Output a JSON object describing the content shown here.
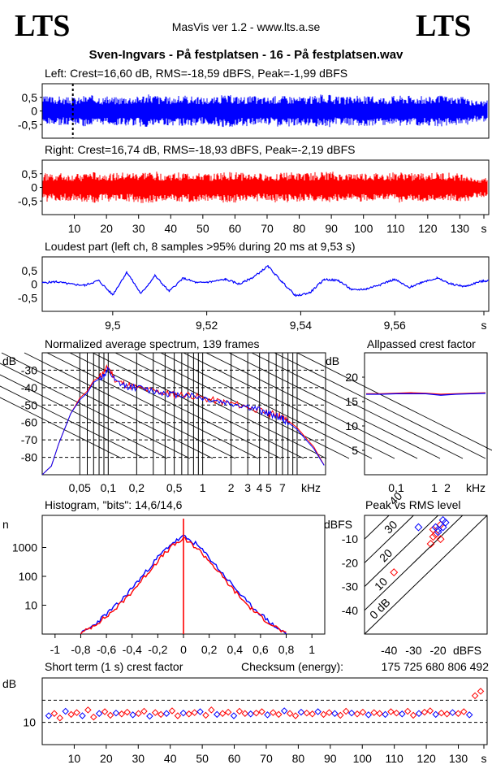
{
  "header": {
    "logo_left": "LTS",
    "logo_right": "LTS",
    "app": "MasVis ver 1.2 - www.lts.a.se",
    "file": "Sven-Ingvars - På festplatsen - 16 - På festplatsen.wav"
  },
  "colors": {
    "left": "#0000ff",
    "right": "#ff0000",
    "grid": "#000000"
  },
  "chart_data": [
    {
      "type": "line",
      "id": "left",
      "title": "Left: Crest=16,60 dB, RMS=-18,59 dBFS, Peak=-1,99 dBFS",
      "y_ticks": [
        "0,5",
        "0",
        "-0,5"
      ],
      "ylim": [
        -1,
        1
      ],
      "xlim": [
        0,
        139
      ],
      "envelope": [
        0.62,
        0.58,
        0.66,
        0.6,
        0.63,
        0.7,
        0.61,
        0.64,
        0.59,
        0.67,
        0.63,
        0.6,
        0.65,
        0.62,
        0.68,
        0.6,
        0.63,
        0.61,
        0.66,
        0.62,
        0.64,
        0.6,
        0.45
      ],
      "marker_x": 9.53
    },
    {
      "type": "line",
      "id": "right",
      "title": "Right: Crest=16,74 dB, RMS=-18,93 dBFS, Peak=-2,19 dBFS",
      "y_ticks": [
        "0,5",
        "0",
        "-0,5"
      ],
      "ylim": [
        -1,
        1
      ],
      "xlim": [
        0,
        139
      ],
      "x_ticks": [
        "10",
        "20",
        "30",
        "40",
        "50",
        "60",
        "70",
        "80",
        "90",
        "100",
        "110",
        "120",
        "130",
        "s"
      ],
      "envelope": [
        0.6,
        0.56,
        0.64,
        0.6,
        0.62,
        0.66,
        0.6,
        0.63,
        0.58,
        0.64,
        0.61,
        0.58,
        0.63,
        0.6,
        0.65,
        0.58,
        0.61,
        0.59,
        0.63,
        0.6,
        0.62,
        0.58,
        0.42
      ]
    },
    {
      "type": "line",
      "id": "loudest",
      "title": "Loudest part (left  ch, 8 samples >95% during 20 ms at 9,53 s)",
      "y_ticks": [
        "0,5",
        "0",
        "-0,5"
      ],
      "x_ticks": [
        "9,5",
        "9,52",
        "9,54",
        "9,56",
        "s"
      ],
      "xlim": [
        9.485,
        9.58
      ],
      "ylim": [
        -1,
        1
      ],
      "x": [
        9.485,
        9.488,
        9.491,
        9.494,
        9.497,
        9.5,
        9.503,
        9.506,
        9.509,
        9.512,
        9.515,
        9.518,
        9.521,
        9.524,
        9.527,
        9.53,
        9.533,
        9.536,
        9.539,
        9.542,
        9.545,
        9.548,
        9.551,
        9.554,
        9.557,
        9.56,
        9.563,
        9.566,
        9.569,
        9.572,
        9.575,
        9.578,
        9.58
      ],
      "y": [
        0.05,
        0.1,
        0.0,
        -0.05,
        0.15,
        -0.45,
        0.5,
        -0.4,
        0.35,
        -0.3,
        0.25,
        0.05,
        0.1,
        0.2,
        0.0,
        0.3,
        0.75,
        0.1,
        -0.5,
        -0.35,
        0.2,
        0.15,
        -0.25,
        -0.2,
        0.0,
        0.2,
        -0.15,
        0.1,
        0.25,
        0.0,
        -0.1,
        0.1,
        0.15
      ]
    },
    {
      "type": "line",
      "id": "spectrum",
      "title": "Normalized average spectrum, 139 frames",
      "ylabel": "dB",
      "y_ticks": [
        "-30",
        "-40",
        "-50",
        "-60",
        "-70",
        "-80"
      ],
      "x_ticks": [
        "0,05",
        "0,1",
        "0,2",
        "0,5",
        "1",
        "2",
        "3",
        "4",
        "5",
        "7",
        "kHz"
      ],
      "ylim": [
        -90,
        -20
      ],
      "xlim": [
        0.02,
        20
      ],
      "x": [
        0.02,
        0.025,
        0.03,
        0.04,
        0.05,
        0.06,
        0.07,
        0.08,
        0.09,
        0.1,
        0.12,
        0.15,
        0.2,
        0.3,
        0.4,
        0.5,
        0.7,
        1,
        1.5,
        2,
        3,
        4,
        5,
        6,
        7,
        8,
        10,
        12,
        15,
        20
      ],
      "series": [
        {
          "name": "",
          "values": [
            -90,
            -85,
            -72,
            -55,
            -46,
            -42,
            -36,
            -34,
            -31,
            -28,
            -36,
            -38,
            -40,
            -42,
            -43,
            -44,
            -44,
            -46,
            -48,
            -49,
            -51,
            -53,
            -55,
            -55,
            -57,
            -59,
            -63,
            -68,
            -74,
            -86
          ]
        },
        {
          "name": "",
          "values": [
            -90,
            -85,
            -72,
            -55,
            -47,
            -43,
            -37,
            -35,
            -33,
            -30,
            -37,
            -39,
            -40,
            -42,
            -43,
            -44,
            -44,
            -46,
            -48,
            -49,
            -51,
            -53,
            -55,
            -56,
            -58,
            -60,
            -64,
            -69,
            -75,
            -86
          ]
        }
      ]
    },
    {
      "type": "line",
      "id": "allpass",
      "title": "Allpassed crest factor",
      "ylabel": "dB",
      "y_ticks": [
        "20",
        "15",
        "10",
        "5"
      ],
      "x_ticks": [
        "0,1",
        "1",
        "2",
        "kHz"
      ],
      "ylim": [
        0,
        25
      ],
      "series": [
        {
          "name": "",
          "values": [
            16.6,
            16.6,
            16.7,
            16.8,
            16.7,
            16.5,
            16.6,
            16.7,
            16.8
          ]
        },
        {
          "name": "",
          "values": [
            16.5,
            16.5,
            16.6,
            16.6,
            16.6,
            16.3,
            16.5,
            16.6,
            16.7
          ]
        }
      ]
    },
    {
      "type": "line",
      "id": "histogram",
      "title": "Histogram, \"bits\": 14,6/14,6",
      "ylabel": "n",
      "y_ticks": [
        "1000",
        "100",
        "10"
      ],
      "x_ticks": [
        "-1",
        "-0,8",
        "-0,6",
        "-0,4",
        "-0,2",
        "0",
        "0,2",
        "0,4",
        "0,6",
        "0,8",
        "1"
      ],
      "xlim": [
        -1.1,
        1.1
      ],
      "x": [
        -0.8,
        -0.7,
        -0.6,
        -0.5,
        -0.4,
        -0.3,
        -0.2,
        -0.1,
        0,
        0.1,
        0.2,
        0.3,
        0.4,
        0.5,
        0.6,
        0.7,
        0.8
      ],
      "series": [
        {
          "name": "",
          "values": [
            1,
            2,
            5,
            12,
            40,
            130,
            450,
            1300,
            2400,
            1300,
            450,
            130,
            40,
            12,
            5,
            2,
            1
          ]
        },
        {
          "name": "",
          "values": [
            1,
            2,
            4,
            10,
            30,
            100,
            350,
            1000,
            2000,
            1000,
            350,
            100,
            30,
            10,
            4,
            2,
            1
          ]
        }
      ]
    },
    {
      "type": "scatter",
      "id": "peak_rms",
      "title": "Peak vs RMS level",
      "ylabel": "dBFS",
      "xlabel": "dBFS",
      "y_ticks": [
        "-10",
        "-20",
        "-30",
        "-40"
      ],
      "x_ticks": [
        "-40",
        "-30",
        "-20"
      ],
      "diag_labels": [
        "40",
        "30",
        "20",
        "10",
        "0 dB"
      ],
      "xlim": [
        -50,
        0
      ],
      "ylim": [
        -50,
        0
      ],
      "points": [
        [
          -22,
          -9
        ],
        [
          -20,
          -6
        ],
        [
          -19,
          -4
        ],
        [
          -18,
          -5
        ],
        [
          -21,
          -8
        ],
        [
          -17,
          -3
        ],
        [
          -23,
          -12
        ],
        [
          -20,
          -7
        ],
        [
          -19,
          -10
        ],
        [
          -18,
          -2
        ],
        [
          -22,
          -6
        ],
        [
          -21,
          -5
        ],
        [
          -38,
          -24
        ],
        [
          -28,
          -5
        ]
      ]
    },
    {
      "type": "scatter",
      "id": "shortterm",
      "title": "Short term (1 s) crest factor",
      "checksum_label": "Checksum (energy):",
      "checksum_value": "175 725 680 806 492",
      "ylabel": "dB",
      "y_ticks": [
        "10"
      ],
      "x_ticks": [
        "10",
        "20",
        "30",
        "40",
        "50",
        "60",
        "70",
        "80",
        "90",
        "100",
        "110",
        "120",
        "130",
        "s"
      ],
      "xlim": [
        0,
        139
      ],
      "ylim": [
        5,
        20
      ],
      "values": [
        11.5,
        12,
        11,
        12.5,
        11.8,
        12.2,
        11.5,
        12.8,
        11.2,
        12,
        12.4,
        11.6,
        12.1,
        11.9,
        12.3,
        11.7,
        12,
        12.5,
        11.4,
        12.2,
        11.8,
        12,
        12.6,
        11.5,
        12.1,
        11.9,
        12.2,
        12.4,
        11.6,
        12.8,
        11.8,
        12,
        12.3,
        11.5,
        12.5,
        12,
        11.9,
        12.1,
        12.4,
        11.7,
        12.2,
        11.8,
        12.6,
        12,
        11.5,
        12.3,
        12.1,
        11.9,
        12.4,
        11.8,
        12.2,
        12,
        11.6,
        12.5,
        12.1,
        11.9,
        12.3,
        11.7,
        12.2,
        12,
        11.8,
        12.4,
        12.1,
        11.9,
        12.5,
        11.6,
        12,
        12.3,
        12.6,
        11.8,
        12.1,
        11.9,
        12.2,
        12,
        12.4,
        11.7,
        16,
        17
      ]
    }
  ]
}
